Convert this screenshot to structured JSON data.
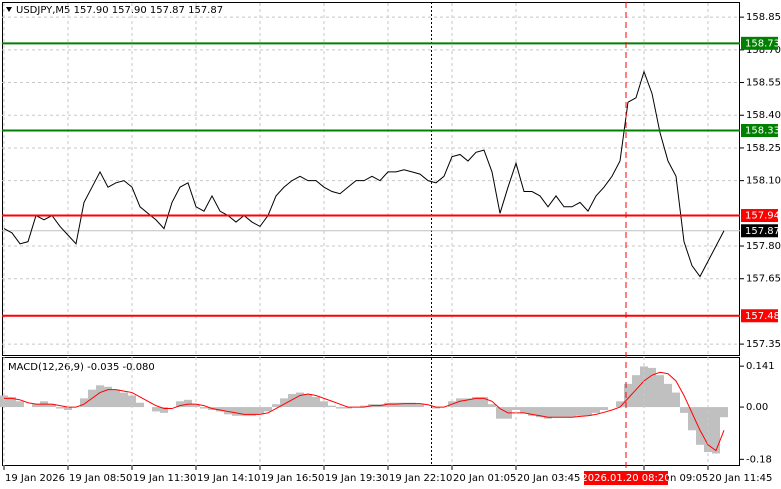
{
  "chart_data": [
    {
      "type": "line",
      "title": "USDJPY,M5  157.90 157.90 157.87 157.87",
      "color": "#000000",
      "categories": [
        "19 Jan 2026",
        null,
        null,
        null,
        null,
        null,
        null,
        null,
        "19 Jan 08:50",
        null,
        null,
        null,
        null,
        null,
        null,
        null,
        "19 Jan 11:30",
        null,
        null,
        null,
        null,
        null,
        null,
        null,
        "19 Jan 14:10",
        null,
        null,
        null,
        null,
        null,
        null,
        null,
        "19 Jan 16:50",
        null,
        null,
        null,
        null,
        null,
        null,
        null,
        "19 Jan 19:30",
        null,
        null,
        null,
        null,
        null,
        null,
        null,
        "19 Jan 22:10",
        null,
        null,
        null,
        null,
        null,
        null,
        null,
        "20 Jan 01:05",
        null,
        null,
        null,
        null,
        null,
        null,
        null,
        "20 Jan 03:45",
        null,
        null,
        null,
        null,
        null,
        null,
        null,
        null,
        null,
        null,
        null,
        null,
        null,
        null,
        null,
        "20 Jan 09:05",
        null,
        null,
        null,
        null,
        null,
        null,
        null,
        "20 Jan 11:45",
        null,
        null
      ],
      "values": [
        157.88,
        157.86,
        157.81,
        157.82,
        157.94,
        157.92,
        157.94,
        157.89,
        157.85,
        157.81,
        158.0,
        158.07,
        158.14,
        158.07,
        158.09,
        158.1,
        158.07,
        157.98,
        157.95,
        157.92,
        157.88,
        158.0,
        158.07,
        158.09,
        157.98,
        157.96,
        158.03,
        157.96,
        157.94,
        157.91,
        157.94,
        157.91,
        157.89,
        157.94,
        158.03,
        158.07,
        158.1,
        158.12,
        158.1,
        158.1,
        158.07,
        158.05,
        158.04,
        158.07,
        158.1,
        158.1,
        158.12,
        158.1,
        158.14,
        158.14,
        158.15,
        158.14,
        158.13,
        158.1,
        158.09,
        158.12,
        158.21,
        158.22,
        158.19,
        158.23,
        158.24,
        158.14,
        157.95,
        158.07,
        158.18,
        158.05,
        158.05,
        158.03,
        157.98,
        158.03,
        157.98,
        157.98,
        158.0,
        157.96,
        158.03,
        158.07,
        158.12,
        158.19,
        158.46,
        158.48,
        158.6,
        158.5,
        158.32,
        158.19,
        158.12,
        157.82,
        157.71,
        157.66,
        157.73,
        157.8,
        157.87
      ],
      "ylim": [
        157.3,
        158.915
      ],
      "yticks": [
        158.85,
        {
          "value": 158.7,
          "label": "158.70"
        },
        158.55,
        {
          "value": 158.4,
          "label": "158.40"
        },
        158.25,
        {
          "value": 158.1,
          "label": "158.10"
        },
        {
          "value": 157.8,
          "label": "157.80"
        },
        157.65,
        157.35
      ],
      "grid": true,
      "levels": [
        {
          "value": 158.73,
          "color": "#008000"
        },
        {
          "value": 158.33,
          "color": "#008000"
        },
        {
          "value": 157.94,
          "color": "#ff0000"
        },
        {
          "value": 157.48,
          "color": "#ff0000"
        }
      ],
      "last_price": 157.87,
      "crosshair_label": "2026.01.20 08:20"
    },
    {
      "type": "macd",
      "title": "MACD(12,26,9) -0.035 -0.080",
      "histogram": {
        "color": "#c0c0c0",
        "values": [
          0.04,
          0.035,
          0.02,
          0.0,
          0.01,
          0.02,
          0.01,
          -0.005,
          -0.01,
          0.0,
          0.03,
          0.06,
          0.075,
          0.07,
          0.06,
          0.05,
          0.04,
          0.015,
          0.0,
          -0.015,
          -0.02,
          0.0,
          0.02,
          0.025,
          0.01,
          -0.005,
          -0.01,
          -0.015,
          -0.025,
          -0.03,
          -0.03,
          -0.03,
          -0.025,
          -0.015,
          0.01,
          0.03,
          0.045,
          0.05,
          0.045,
          0.035,
          0.02,
          0.005,
          -0.005,
          -0.005,
          0.0,
          0.005,
          0.01,
          0.01,
          0.015,
          0.015,
          0.015,
          0.015,
          0.01,
          0.0,
          -0.005,
          0.0,
          0.02,
          0.03,
          0.03,
          0.035,
          0.035,
          0.01,
          -0.04,
          -0.04,
          -0.01,
          -0.02,
          -0.03,
          -0.035,
          -0.04,
          -0.035,
          -0.035,
          -0.035,
          -0.03,
          -0.03,
          -0.02,
          -0.01,
          0.0,
          0.02,
          0.08,
          0.11,
          0.14,
          0.135,
          0.11,
          0.08,
          0.05,
          -0.02,
          -0.08,
          -0.13,
          -0.155,
          -0.16,
          -0.035
        ]
      },
      "signal": {
        "color": "#ff0000",
        "values": [
          0.03,
          0.03,
          0.025,
          0.015,
          0.01,
          0.01,
          0.01,
          0.005,
          0.0,
          0.0,
          0.01,
          0.03,
          0.05,
          0.06,
          0.06,
          0.055,
          0.05,
          0.035,
          0.02,
          0.005,
          -0.005,
          -0.005,
          0.005,
          0.01,
          0.01,
          0.005,
          -0.005,
          -0.01,
          -0.015,
          -0.02,
          -0.025,
          -0.025,
          -0.025,
          -0.02,
          -0.005,
          0.01,
          0.025,
          0.04,
          0.045,
          0.04,
          0.03,
          0.02,
          0.01,
          0.0,
          0.0,
          0.0,
          0.005,
          0.005,
          0.01,
          0.01,
          0.012,
          0.012,
          0.012,
          0.008,
          0.0,
          0.0,
          0.01,
          0.02,
          0.025,
          0.03,
          0.03,
          0.02,
          -0.005,
          -0.02,
          -0.02,
          -0.02,
          -0.025,
          -0.03,
          -0.035,
          -0.035,
          -0.035,
          -0.035,
          -0.032,
          -0.03,
          -0.025,
          -0.018,
          -0.01,
          0.0,
          0.03,
          0.06,
          0.09,
          0.11,
          0.12,
          0.115,
          0.09,
          0.04,
          -0.02,
          -0.08,
          -0.13,
          -0.15,
          -0.08
        ]
      },
      "ylim": [
        -0.203,
        0.176
      ],
      "yticks": [
        0.141,
        {
          "value": 0,
          "label": "0.00"
        },
        -0.18
      ]
    }
  ]
}
